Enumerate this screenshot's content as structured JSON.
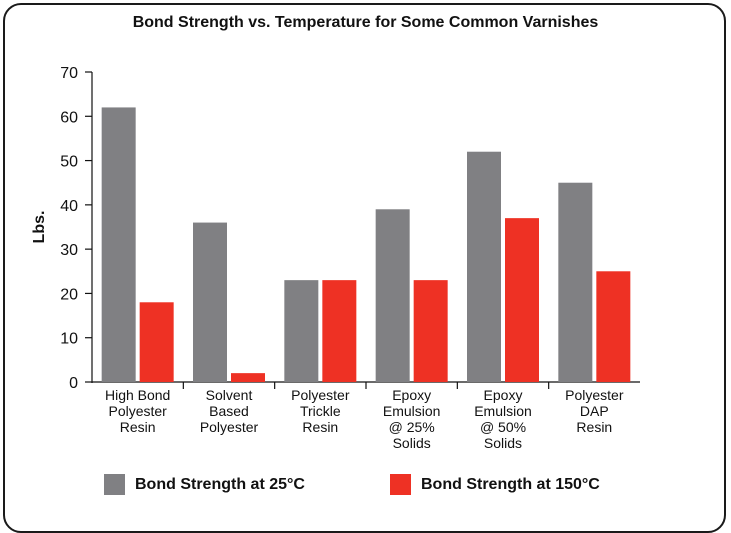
{
  "chart_data": {
    "type": "bar",
    "title": "Bond Strength vs. Temperature for Some Common Varnishes",
    "ylabel": "Lbs.",
    "xlabel": "",
    "ylim": [
      0,
      70
    ],
    "yticks": [
      0,
      10,
      20,
      30,
      40,
      50,
      60,
      70
    ],
    "grid": false,
    "legend_position": "bottom",
    "categories": [
      [
        "High Bond",
        "Polyester",
        "Resin"
      ],
      [
        "Solvent",
        "Based",
        "Polyester"
      ],
      [
        "Polyester",
        "Trickle",
        "Resin"
      ],
      [
        "Epoxy",
        "Emulsion",
        "@ 25%",
        "Solids"
      ],
      [
        "Epoxy",
        "Emulsion",
        "@ 50%",
        "Solids"
      ],
      [
        "Polyester",
        "DAP",
        "Resin"
      ]
    ],
    "series": [
      {
        "name": "Bond Strength at 25°C",
        "color": "#808083",
        "values": [
          62,
          36,
          23,
          39,
          52,
          45
        ]
      },
      {
        "name": "Bond Strength at 150°C",
        "color": "#ee3124",
        "values": [
          18,
          2,
          23,
          23,
          37,
          25
        ]
      }
    ]
  }
}
